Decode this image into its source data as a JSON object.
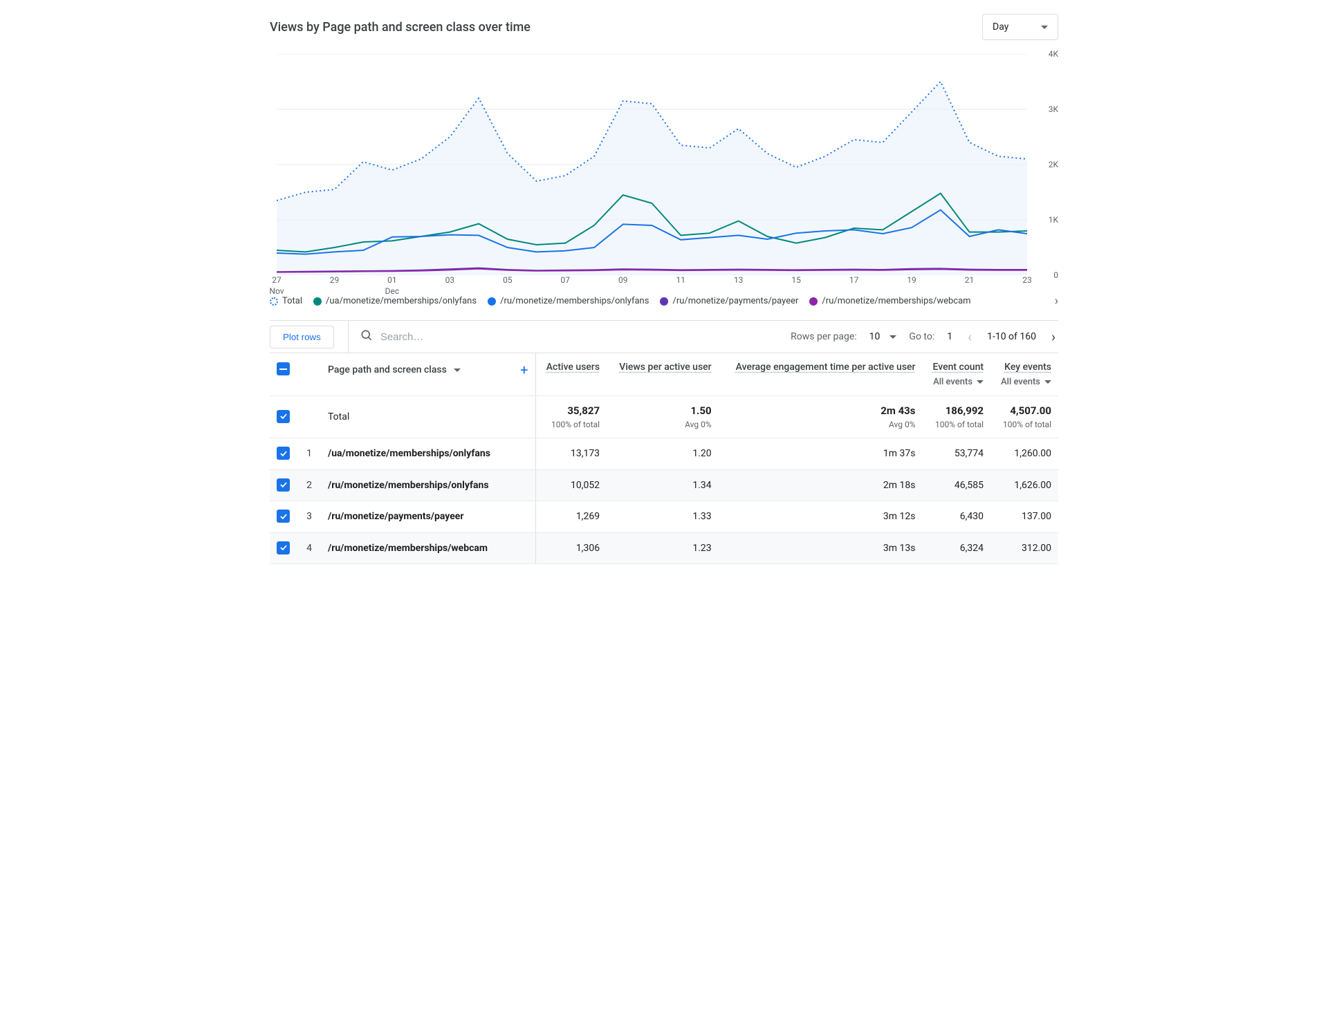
{
  "title": "Views by Page path and screen class over time",
  "granularity_selector": {
    "value": "Day"
  },
  "chart": {
    "type": "line",
    "background_color": "#ffffff",
    "grid_color": "#e8eaed",
    "ylim": [
      0,
      4000
    ],
    "yticks": [
      0,
      1000,
      2000,
      3000,
      4000
    ],
    "ytick_labels": [
      "0",
      "1K",
      "2K",
      "3K",
      "4K"
    ],
    "x_categories": [
      "27\nNov",
      "28",
      "29",
      "30",
      "01\nDec",
      "02",
      "03",
      "04",
      "05",
      "06",
      "07",
      "08",
      "09",
      "10",
      "11",
      "12",
      "13",
      "14",
      "15",
      "16",
      "17",
      "18",
      "19",
      "20",
      "21",
      "22",
      "23"
    ],
    "x_visible_labels": [
      "27\nNov",
      "29",
      "01\nDec",
      "03",
      "05",
      "07",
      "09",
      "11",
      "13",
      "15",
      "17",
      "19",
      "21",
      "23"
    ],
    "series": [
      {
        "name": "Total",
        "color": "#1a73e8",
        "style": "dotted",
        "fill": "#eaf1fb",
        "fill_opacity": 0.6,
        "values": [
          1350,
          1500,
          1550,
          2050,
          1900,
          2100,
          2500,
          3200,
          2200,
          1700,
          1800,
          2150,
          3150,
          3100,
          2350,
          2300,
          2650,
          2200,
          1950,
          2150,
          2450,
          2400,
          2950,
          3500,
          2400,
          2150,
          2100
        ]
      },
      {
        "name": "/ua/monetize/memberships/onlyfans",
        "color": "#00897b",
        "style": "solid",
        "values": [
          450,
          420,
          500,
          600,
          620,
          700,
          780,
          930,
          650,
          550,
          580,
          900,
          1450,
          1300,
          720,
          760,
          980,
          700,
          580,
          680,
          850,
          820,
          1150,
          1480,
          780,
          780,
          800
        ]
      },
      {
        "name": "/ru/monetize/memberships/onlyfans",
        "color": "#1a73e8",
        "style": "solid",
        "values": [
          400,
          380,
          420,
          450,
          690,
          700,
          730,
          720,
          500,
          420,
          440,
          500,
          920,
          900,
          640,
          680,
          720,
          650,
          760,
          800,
          820,
          750,
          860,
          1180,
          700,
          820,
          750
        ]
      },
      {
        "name": "/ru/monetize/payments/payeer",
        "color": "#5e35b1",
        "style": "solid",
        "values": [
          60,
          65,
          70,
          75,
          80,
          90,
          110,
          130,
          100,
          85,
          90,
          95,
          110,
          105,
          95,
          100,
          105,
          100,
          95,
          100,
          105,
          100,
          115,
          120,
          105,
          100,
          100
        ]
      },
      {
        "name": "/ru/monetize/memberships/webcam",
        "color": "#8e24aa",
        "style": "solid",
        "values": [
          55,
          58,
          62,
          68,
          72,
          80,
          95,
          115,
          90,
          78,
          82,
          86,
          98,
          94,
          86,
          90,
          94,
          90,
          86,
          90,
          94,
          90,
          102,
          108,
          94,
          90,
          90
        ]
      }
    ]
  },
  "legend": [
    {
      "label": "Total",
      "color": "#1a73e8",
      "dotted": true
    },
    {
      "label": "/ua/monetize/memberships/onlyfans",
      "color": "#00897b"
    },
    {
      "label": "/ru/monetize/memberships/onlyfans",
      "color": "#1a73e8"
    },
    {
      "label": "/ru/monetize/payments/payeer",
      "color": "#5e35b1"
    },
    {
      "label": "/ru/monetize/memberships/webcam",
      "color": "#8e24aa"
    }
  ],
  "toolbar": {
    "plot_rows": "Plot rows",
    "search_placeholder": "Search…",
    "rows_per_page_label": "Rows per page:",
    "rows_per_page_value": "10",
    "go_to_label": "Go to:",
    "go_to_value": "1",
    "range_label": "1-10 of 160"
  },
  "table": {
    "dimension_header": "Page path and screen class",
    "columns": [
      {
        "key": "active_users",
        "label": "Active users"
      },
      {
        "key": "views_per_user",
        "label": "Views per active user"
      },
      {
        "key": "avg_eng",
        "label": "Average engagement time per active user"
      },
      {
        "key": "event_count",
        "label": "Event count",
        "sub_selector": "All events"
      },
      {
        "key": "key_events",
        "label": "Key events",
        "sub_selector": "All events"
      }
    ],
    "totals": {
      "label": "Total",
      "active_users": {
        "value": "35,827",
        "sub": "100% of total"
      },
      "views_per_user": {
        "value": "1.50",
        "sub": "Avg 0%"
      },
      "avg_eng": {
        "value": "2m 43s",
        "sub": "Avg 0%"
      },
      "event_count": {
        "value": "186,992",
        "sub": "100% of total"
      },
      "key_events": {
        "value": "4,507.00",
        "sub": "100% of total"
      }
    },
    "rows": [
      {
        "idx": 1,
        "dim": "/ua/monetize/memberships/onlyfans",
        "active_users": "13,173",
        "views_per_user": "1.20",
        "avg_eng": "1m 37s",
        "event_count": "53,774",
        "key_events": "1,260.00"
      },
      {
        "idx": 2,
        "dim": "/ru/monetize/memberships/onlyfans",
        "active_users": "10,052",
        "views_per_user": "1.34",
        "avg_eng": "2m 18s",
        "event_count": "46,585",
        "key_events": "1,626.00"
      },
      {
        "idx": 3,
        "dim": "/ru/monetize/payments/payeer",
        "active_users": "1,269",
        "views_per_user": "1.33",
        "avg_eng": "3m 12s",
        "event_count": "6,430",
        "key_events": "137.00"
      },
      {
        "idx": 4,
        "dim": "/ru/monetize/memberships/webcam",
        "active_users": "1,306",
        "views_per_user": "1.23",
        "avg_eng": "3m 13s",
        "event_count": "6,324",
        "key_events": "312.00"
      }
    ]
  }
}
